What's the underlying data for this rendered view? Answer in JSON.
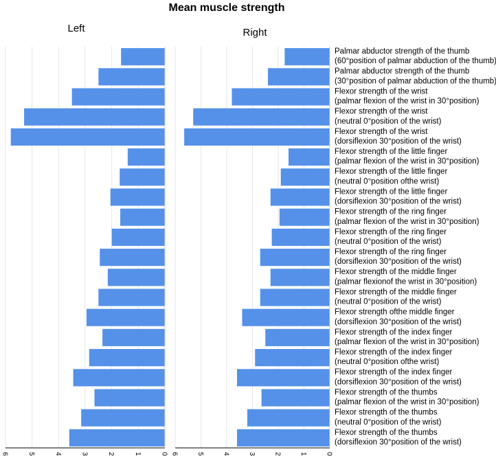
{
  "chart_data": {
    "type": "bar",
    "orientation": "horizontal-mirrored",
    "title": "Mean muscle strength",
    "bar_color": "#5591e8",
    "xlim": [
      0,
      6
    ],
    "ticks": [
      "0",
      "1",
      "2",
      "3",
      "4",
      "5",
      "6"
    ],
    "categories": [
      [
        "Palmar abductor strength of the thumb",
        "(60°position of palmar abduction of the thumb)"
      ],
      [
        "Palmar abductor strength of the thumb",
        "(30°position of palmar abduction of the thumb)"
      ],
      [
        "Flexor strength of the wrist",
        "(palmar flexion of the wrist in 30°position)"
      ],
      [
        "Flexor strength of the wrist",
        "(neutral 0°position of the wrist)"
      ],
      [
        "Flexor strength of the wrist",
        "(dorsiflexion 30°position of the wrist)"
      ],
      [
        "Flexor strength of the little finger",
        "(palmar flexion of the wrist in 30°position)"
      ],
      [
        "Flexor strength of the little finger",
        "(neutral 0°position ofthe wrist)"
      ],
      [
        "Flexor strength of the little finger",
        "(dorsiflexion 30°position of the wrist)"
      ],
      [
        "Flexor strength of the ring finger",
        "(palmar flexion of the wrist in 30°position)"
      ],
      [
        "Flexor strength of the ring finger",
        "(neutral 0°position of the wrist)"
      ],
      [
        "Flexor strength of the ring finger",
        "(dorsiflexion 30°position of the wrist)"
      ],
      [
        "Flexor strength of the middle finger",
        "(palmar flexionof the wrist in 30°position)"
      ],
      [
        "Flexor strength of the middle finger",
        "(neutral 0°position of the wrist)"
      ],
      [
        "Flexor strength ofthe middle finger",
        "(dorsiflexion 30°position of the wrist)"
      ],
      [
        "Flexor strength of the index finger",
        "(palmar flexion of the wrist in 30°position)"
      ],
      [
        "Flexor strength of the index finger",
        "(neutral 0°position ofthe wrist)"
      ],
      [
        "Flexor strength of the index finger",
        "(dorsiflexion 30°position of the wrist)"
      ],
      [
        "Flexor strength of the thumbs",
        "(palmar flexion of the wrist in 30°position)"
      ],
      [
        "Flexor strength of the thumbs",
        "(neutral 0°position of the wrist)"
      ],
      [
        "Flexor strength of the thumbs",
        "(dorsiflexion 30°position of the wrist)"
      ]
    ],
    "series": [
      {
        "name": "Left",
        "values": [
          1.65,
          2.5,
          3.5,
          5.3,
          5.8,
          1.4,
          1.7,
          2.05,
          1.68,
          2.0,
          2.45,
          2.15,
          2.5,
          2.95,
          2.35,
          2.85,
          3.45,
          2.65,
          3.15,
          3.6
        ]
      },
      {
        "name": "Right",
        "values": [
          1.75,
          2.4,
          3.8,
          5.3,
          5.65,
          1.6,
          1.9,
          2.3,
          1.95,
          2.25,
          2.7,
          2.3,
          2.7,
          3.4,
          2.5,
          2.9,
          3.6,
          2.65,
          3.2,
          3.6
        ]
      }
    ]
  }
}
